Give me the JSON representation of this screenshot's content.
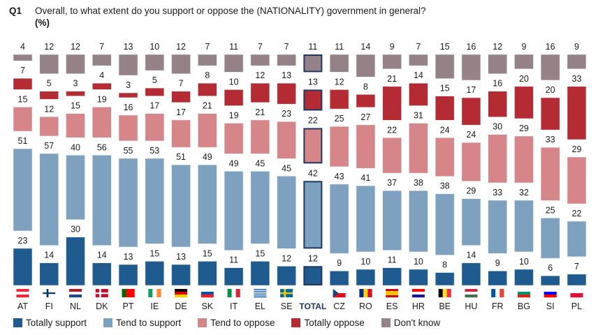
{
  "header": {
    "question_number": "Q1",
    "question_text": "Overall, to what extent do you support or oppose the (NATIONALITY) government in general?",
    "unit": "(%)"
  },
  "colors": {
    "totally_support": "#1f5b8e",
    "tend_to_support": "#7fa1c0",
    "tend_to_oppose": "#d68589",
    "totally_oppose": "#b52b33",
    "dont_know": "#958286",
    "total_outline": "#1f3864"
  },
  "chart_data": {
    "type": "bar",
    "stacked": true,
    "title": "Overall, to what extent do you support or oppose the (NATIONALITY) government in general?",
    "unit": "%",
    "categories": [
      "AT",
      "FI",
      "NL",
      "DK",
      "PT",
      "IE",
      "DE",
      "SK",
      "IT",
      "EL",
      "SE",
      "TOTAL",
      "CZ",
      "RO",
      "ES",
      "HR",
      "BE",
      "HU",
      "FR",
      "BG",
      "SI",
      "PL"
    ],
    "flags": [
      "austria-flag",
      "finland-flag",
      "netherlands-flag",
      "denmark-flag",
      "portugal-flag",
      "ireland-flag",
      "germany-flag",
      "slovakia-flag",
      "italy-flag",
      "greece-flag",
      "sweden-flag",
      "",
      "czechia-flag",
      "romania-flag",
      "spain-flag",
      "croatia-flag",
      "belgium-flag",
      "hungary-flag",
      "france-flag",
      "bulgaria-flag",
      "slovenia-flag",
      "poland-flag"
    ],
    "highlight_category": "TOTAL",
    "series": [
      {
        "key": "totally_support",
        "name": "Totally support",
        "values": [
          23,
          14,
          30,
          14,
          13,
          15,
          13,
          15,
          11,
          15,
          12,
          12,
          9,
          10,
          11,
          10,
          8,
          14,
          9,
          10,
          6,
          7
        ]
      },
      {
        "key": "tend_to_support",
        "name": "Tend to support",
        "values": [
          51,
          57,
          40,
          56,
          55,
          53,
          51,
          49,
          49,
          45,
          45,
          42,
          43,
          41,
          37,
          38,
          38,
          29,
          33,
          32,
          25,
          22
        ]
      },
      {
        "key": "tend_to_oppose",
        "name": "Tend to oppose",
        "values": [
          15,
          12,
          15,
          19,
          16,
          17,
          17,
          21,
          19,
          21,
          23,
          22,
          25,
          27,
          22,
          31,
          24,
          24,
          30,
          29,
          33,
          29
        ]
      },
      {
        "key": "totally_oppose",
        "name": "Totally oppose",
        "values": [
          7,
          5,
          3,
          4,
          3,
          5,
          7,
          8,
          10,
          12,
          13,
          13,
          12,
          8,
          21,
          14,
          15,
          17,
          16,
          20,
          20,
          33
        ]
      },
      {
        "key": "dont_know",
        "name": "Don't know",
        "values": [
          4,
          12,
          12,
          7,
          13,
          10,
          12,
          7,
          11,
          7,
          7,
          11,
          11,
          14,
          9,
          7,
          15,
          16,
          12,
          9,
          16,
          9
        ]
      }
    ],
    "legend": [
      "Totally support",
      "Tend to support",
      "Tend to oppose",
      "Totally oppose",
      "Don't know"
    ],
    "legend_position": "bottom-left",
    "grid": false
  }
}
